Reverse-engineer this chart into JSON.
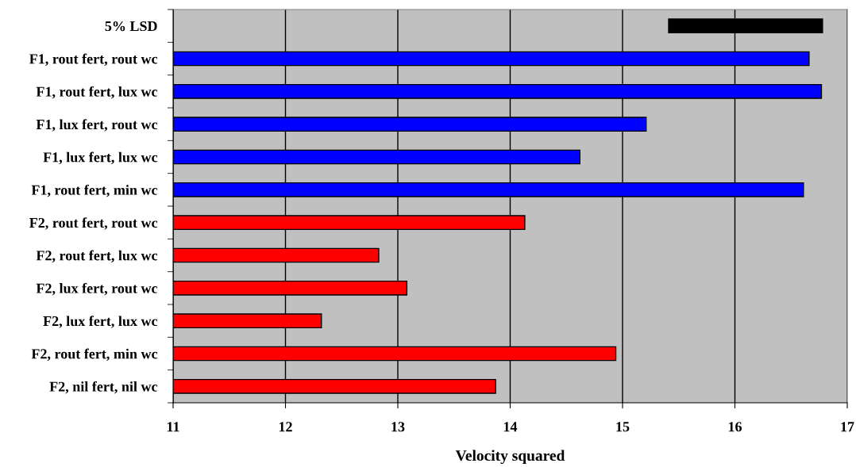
{
  "chart_data": {
    "type": "bar",
    "orientation": "horizontal",
    "xlabel": "Velocity squared",
    "categories": [
      "5% LSD",
      "F1, rout fert, rout wc",
      "F1, rout fert, lux wc",
      "F1, lux fert, rout wc",
      "F1, lux fert, lux wc",
      "F1, rout fert, min wc",
      "F2, rout fert, rout wc",
      "F2, rout fert, lux wc",
      "F2, lux fert, rout wc",
      "F2, lux fert, lux wc",
      "F2, rout fert, min wc",
      "F2, nil fert, nil wc"
    ],
    "values": [
      1.37,
      5.66,
      5.77,
      4.21,
      3.62,
      5.61,
      3.13,
      1.83,
      2.08,
      1.32,
      3.94,
      2.87
    ],
    "base": [
      15.41,
      11,
      11,
      11,
      11,
      11,
      11,
      11,
      11,
      11,
      11,
      11
    ],
    "colors": [
      "#000000",
      "#0000ff",
      "#0000ff",
      "#0000ff",
      "#0000ff",
      "#0000ff",
      "#ff0000",
      "#ff0000",
      "#ff0000",
      "#ff0000",
      "#ff0000",
      "#ff0000"
    ],
    "xlim": [
      11,
      17
    ],
    "xticks": [
      11,
      12,
      13,
      14,
      15,
      16,
      17
    ],
    "grid": "x"
  }
}
